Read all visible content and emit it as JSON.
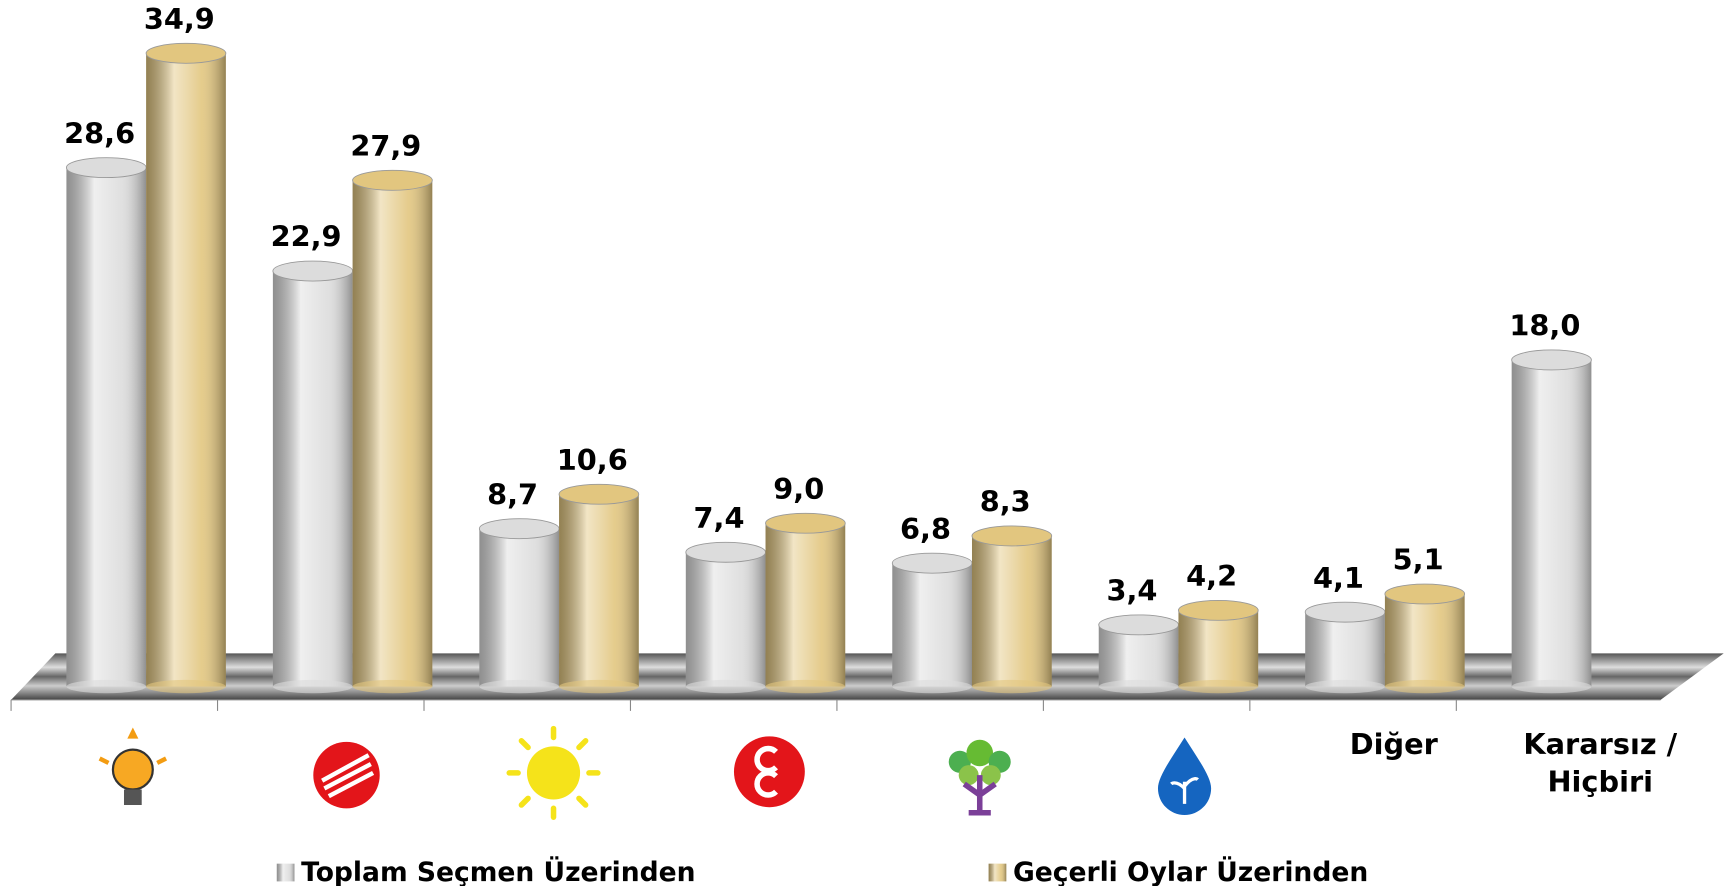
{
  "chart_data": {
    "type": "bar",
    "categories": [
      null,
      null,
      null,
      null,
      null,
      null,
      "Diğer",
      "Kararsız / Hiçbiri"
    ],
    "series": [
      {
        "name": "Toplam Seçmen Üzerinden",
        "color": "#dcdcdc",
        "values": [
          28.6,
          22.9,
          8.7,
          7.4,
          6.8,
          3.4,
          4.1,
          18.0
        ],
        "value_labels": [
          "28,6",
          "22,9",
          "8,7",
          "7,4",
          "6,8",
          "3,4",
          "4,1",
          "18,0"
        ]
      },
      {
        "name": "Geçerli Oylar Üzerinden",
        "color": "#e2c67f",
        "values": [
          34.9,
          27.9,
          10.6,
          9.0,
          8.3,
          4.2,
          5.1,
          null
        ],
        "value_labels": [
          "34,9",
          "27,9",
          "10,6",
          "9,0",
          "8,3",
          "4,2",
          "5,1",
          null
        ]
      }
    ]
  }
}
